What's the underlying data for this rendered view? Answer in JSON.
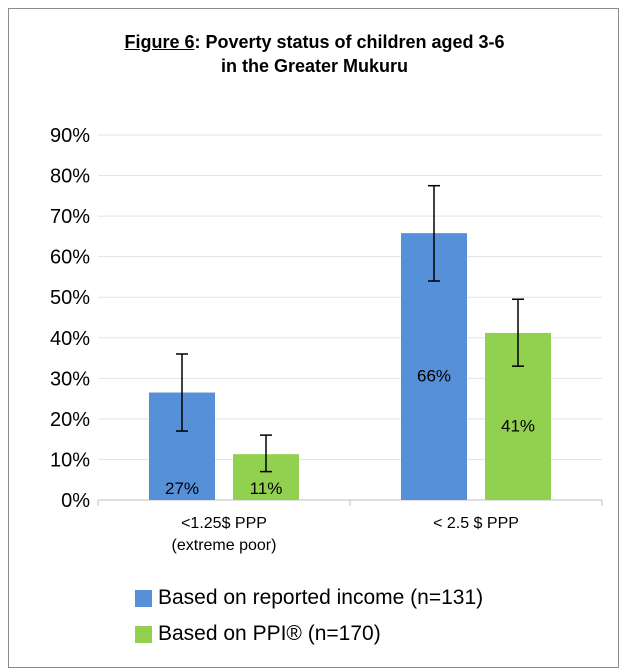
{
  "chart_data": {
    "type": "bar",
    "title_prefix": "Figure 6",
    "title_rest": ": Poverty status of children aged 3-6",
    "title_line2": "in the Greater Mukuru",
    "categories": [
      [
        "<1.25$ PPP",
        "(extreme poor)"
      ],
      [
        "< 2.5 $ PPP"
      ]
    ],
    "series": [
      {
        "name": "Based on reported income (n=131)",
        "color": "#5590d8",
        "values": [
          26.5,
          65.8
        ],
        "labels": [
          "27%",
          "66%"
        ],
        "error_low": [
          17,
          54
        ],
        "error_high": [
          36,
          77.5
        ]
      },
      {
        "name": "Based on PPI® (n=170)",
        "color": "#92d050",
        "values": [
          11.3,
          41.2
        ],
        "labels": [
          "11%",
          "41%"
        ],
        "error_low": [
          7,
          33
        ],
        "error_high": [
          16,
          49.5
        ]
      }
    ],
    "yticks": [
      "0%",
      "10%",
      "20%",
      "30%",
      "40%",
      "50%",
      "60%",
      "70%",
      "80%",
      "90%"
    ],
    "ylim": [
      0,
      90
    ],
    "grid": true,
    "legend_position": "bottom"
  }
}
